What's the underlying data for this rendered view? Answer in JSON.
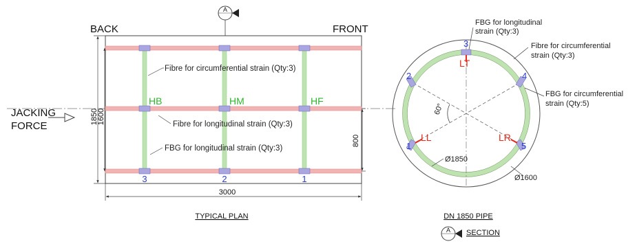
{
  "plan": {
    "back_label": "BACK",
    "front_label": "FRONT",
    "section_marker": "A",
    "jacking_force_line1": "JACKING",
    "jacking_force_line2": "FORCE",
    "dim_1850": "1850",
    "dim_1600": "1600",
    "dim_800": "800",
    "dim_3000": "3000",
    "fibre_circ_label": "Fibre for circumferential strain (Qty:3)",
    "fibre_long_label": "Fibre for longitudinal strain (Qty:3)",
    "fbg_long_label": "FBG for longitudinal strain (Qty:3)",
    "hoop_labels": [
      "HB",
      "HM",
      "HF"
    ],
    "section_numbers": [
      "3",
      "2",
      "1"
    ],
    "caption": "TYPICAL PLAN"
  },
  "section": {
    "fbg_long_label_line1": "FBG for longitudinal",
    "fbg_long_label_line2": "strain (Qty:3)",
    "fibre_circ_label_line1": "Fibre for circumferential",
    "fibre_circ_label_line2": "strain (Qty:3)",
    "fbg_circ_label_line1": "FBG for circumferential",
    "fbg_circ_label_line2": "strain (Qty:5)",
    "sensor_numbers": [
      "1",
      "2",
      "3",
      "4",
      "5"
    ],
    "strain_labels": [
      "LT",
      "LL",
      "LR"
    ],
    "angle_label": "60°",
    "dia_outer": "Ø1850",
    "dia_inner": "Ø1600",
    "caption": "DN 1850 PIPE",
    "section_marker": "A",
    "section_label": "SECTION"
  },
  "colors": {
    "longitudinal_fibre": "#f2b3b3",
    "circumferential_fibre": "#bfe3b0",
    "fbg_sensor": "#a9a6e0",
    "red_text": "#e8291c",
    "green_text": "#2fb52f",
    "blue_text": "#2b3fd1"
  }
}
